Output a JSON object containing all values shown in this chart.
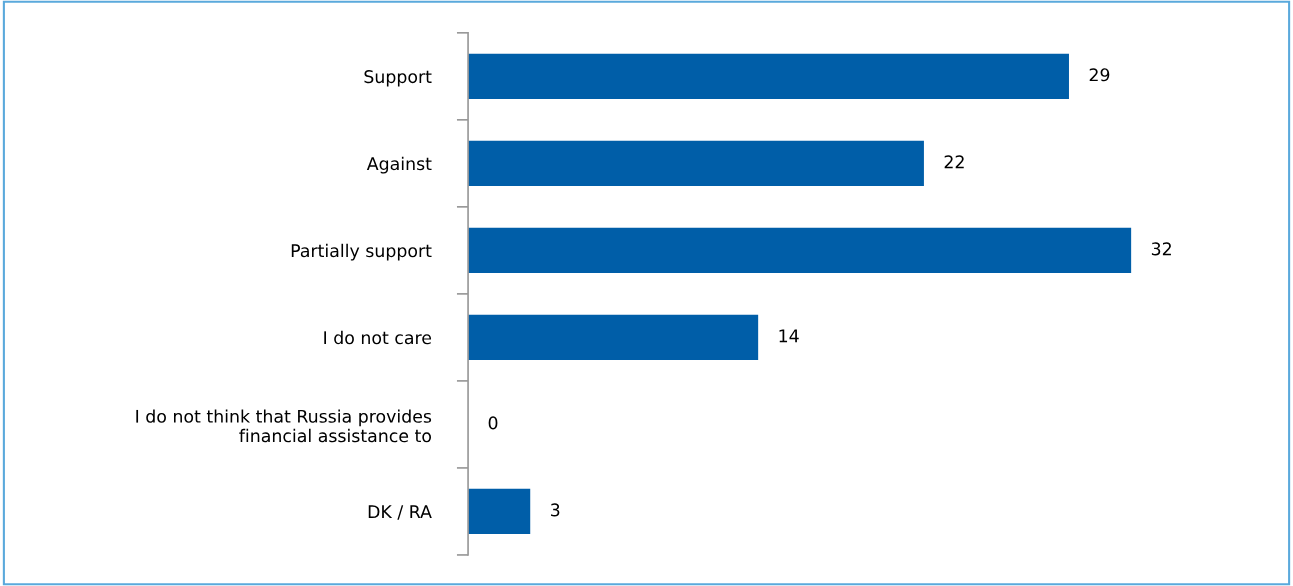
{
  "chart_data": {
    "type": "bar",
    "orientation": "horizontal",
    "categories": [
      "Support",
      "Against",
      "Partially support",
      "I do not care",
      "I do not think that Russia provides\nfinancial assistance to",
      "DK / RA"
    ],
    "values": [
      29,
      22,
      32,
      14,
      0,
      3
    ],
    "color": "#005ea8",
    "data_labels": true,
    "grid": false,
    "legend": false
  }
}
